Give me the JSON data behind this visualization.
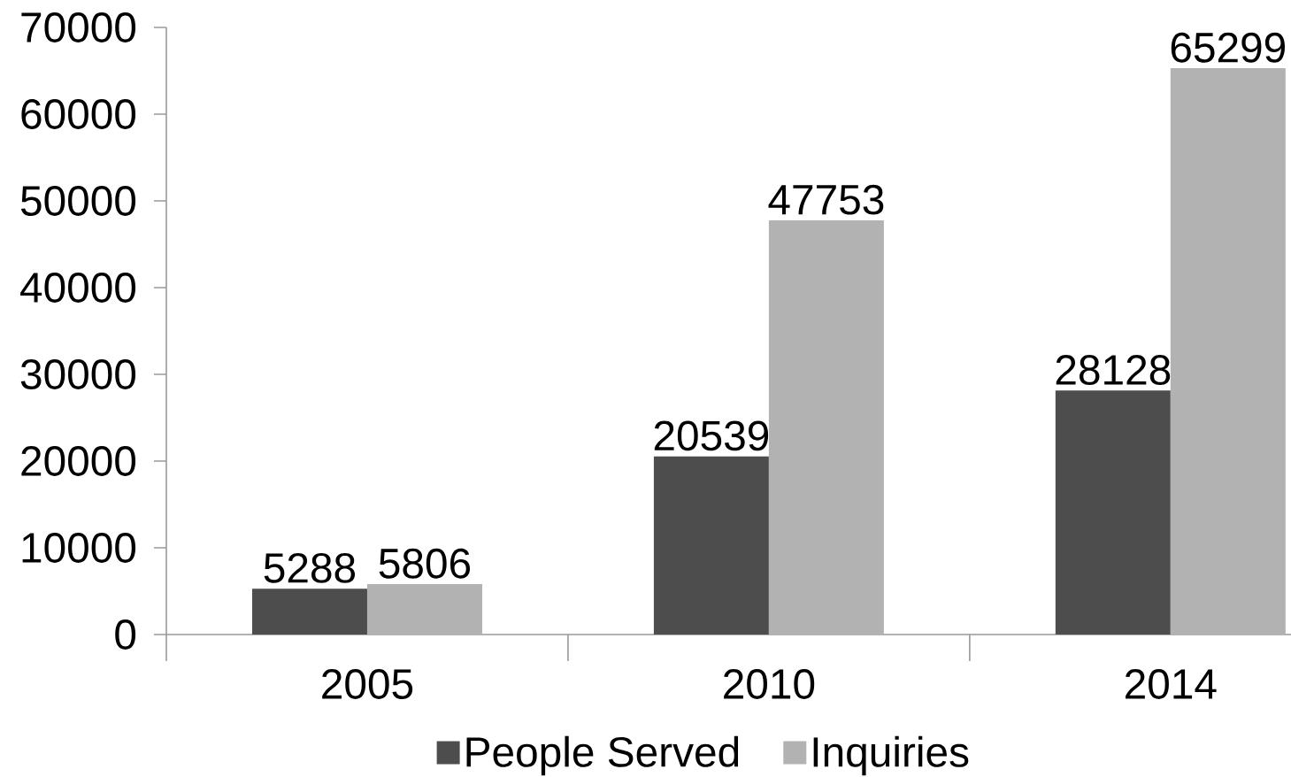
{
  "chart_data": {
    "type": "bar",
    "categories": [
      "2005",
      "2010",
      "2014"
    ],
    "series": [
      {
        "name": "People Served",
        "color": "#4d4d4d",
        "values": [
          5288,
          20539,
          28128
        ]
      },
      {
        "name": "Inquiries",
        "color": "#b2b2b2",
        "values": [
          5806,
          47753,
          65299
        ]
      }
    ],
    "ylim": [
      0,
      70000
    ],
    "yticks": [
      0,
      10000,
      20000,
      30000,
      40000,
      50000,
      60000,
      70000
    ],
    "data_labels": true,
    "grid": false,
    "legend": "bottom"
  }
}
